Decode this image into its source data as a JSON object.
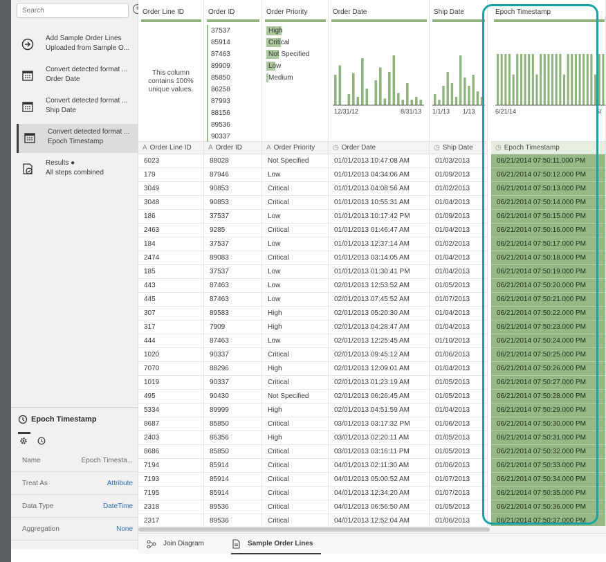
{
  "steps_pane": {
    "search_placeholder": "Search",
    "steps": [
      {
        "line1": "Add Sample Order Lines",
        "line2": "Uploaded from Sample O...",
        "icon": "arrow-circle-icon"
      },
      {
        "line1": "Convert detected format ...",
        "line2": "Order Date",
        "icon": "calendar-icon"
      },
      {
        "line1": "Convert detected format ...",
        "line2": "Ship Date",
        "icon": "calendar-icon"
      },
      {
        "line1": "Convert detected format ...",
        "line2": "Epoch Timestamp",
        "icon": "calendar-icon"
      },
      {
        "line1": "Results ●",
        "line2": "All steps combined",
        "icon": "results-icon"
      }
    ]
  },
  "properties": {
    "title": "Epoch Timestamp",
    "rows": [
      {
        "key": "Name",
        "value": "Epoch Timesta..."
      },
      {
        "key": "Treat As",
        "value": "Attribute"
      },
      {
        "key": "Data Type",
        "value": "DateTime"
      },
      {
        "key": "Aggregation",
        "value": "None"
      }
    ]
  },
  "columns": {
    "order_line_id": {
      "title": "Order Line ID",
      "subhead": "Order Line ID",
      "type_glyph": "A",
      "note": "This column contains 100% unique values."
    },
    "order_id": {
      "title": "Order ID",
      "subhead": "Order ID",
      "type_glyph": "A",
      "values_preview": [
        "37537",
        "85914",
        "87463",
        "89909",
        "85850",
        "86258",
        "87993",
        "88156",
        "89536",
        "90337"
      ]
    },
    "order_priority": {
      "title": "Order Priority",
      "subhead": "Order Priority",
      "type_glyph": "A",
      "values_preview": [
        "High",
        "Critical",
        "Not Specified",
        "Low",
        "Medium"
      ],
      "frequencies": [
        0.28,
        0.26,
        0.22,
        0.16,
        0.04
      ]
    },
    "order_date": {
      "title": "Order Date",
      "subhead": "Order Date",
      "type_glyph": "◷",
      "axis": [
        "12/31/12",
        "8/31/13"
      ],
      "histogram": [
        0.55,
        0.72,
        0,
        0.2,
        0.58,
        0.15,
        0.85,
        0.3,
        0,
        0.45,
        0.68,
        0.12,
        0.6,
        0.9,
        0.22,
        0.1,
        0.4,
        0.1,
        0.15,
        0.1
      ]
    },
    "ship_date": {
      "title": "Ship Date",
      "subhead": "Ship Date",
      "type_glyph": "◷",
      "axis": [
        "1/1/13",
        "1/13"
      ],
      "histogram": [
        0.2,
        0.1,
        0.35,
        0.6,
        0.4,
        0.15,
        0.9,
        0.5,
        0.35,
        0.55,
        0.25,
        0.15
      ]
    },
    "epoch_timestamp": {
      "title": "Epoch Timestamp",
      "subhead": "Epoch Timestamp",
      "type_glyph": "◷",
      "axis": [
        "6/21/14",
        "6/"
      ],
      "histogram": [
        1,
        1,
        1,
        1,
        0.6,
        1,
        1,
        1,
        1,
        1,
        0.6,
        1,
        1,
        1,
        1,
        1,
        1,
        0.6,
        1,
        1,
        1,
        1,
        1,
        1,
        1,
        0.6,
        1,
        1
      ]
    }
  },
  "rows": [
    [
      "6023",
      "88028",
      "Not Specified",
      "01/01/2013 10:47:08 AM",
      "01/03/2013",
      "06/21/2014 07:50:11.000 PM"
    ],
    [
      "179",
      "87946",
      "Low",
      "01/01/2013 04:34:06 AM",
      "01/09/2013",
      "06/21/2014 07:50:12.000 PM"
    ],
    [
      "3049",
      "90853",
      "Critical",
      "01/01/2013 04:08:56 AM",
      "01/02/2013",
      "06/21/2014 07:50:13.000 PM"
    ],
    [
      "3048",
      "90853",
      "Critical",
      "01/01/2013 10:55:31 AM",
      "01/04/2013",
      "06/21/2014 07:50:14.000 PM"
    ],
    [
      "186",
      "37537",
      "Low",
      "01/01/2013 10:17:42 PM",
      "01/09/2013",
      "06/21/2014 07:50:15.000 PM"
    ],
    [
      "2463",
      "9285",
      "Critical",
      "01/01/2013 01:46:47 AM",
      "01/04/2013",
      "06/21/2014 07:50:16.000 PM"
    ],
    [
      "184",
      "37537",
      "Low",
      "01/01/2013 12:37:14 AM",
      "01/02/2013",
      "06/21/2014 07:50:17.000 PM"
    ],
    [
      "2474",
      "89083",
      "Critical",
      "01/01/2013 03:14:05 AM",
      "01/04/2013",
      "06/21/2014 07:50:18.000 PM"
    ],
    [
      "185",
      "37537",
      "Low",
      "01/01/2013 01:30:41 PM",
      "01/04/2013",
      "06/21/2014 07:50:19.000 PM"
    ],
    [
      "443",
      "87463",
      "Low",
      "02/01/2013 12:53:52 AM",
      "01/05/2013",
      "06/21/2014 07:50:20.000 PM"
    ],
    [
      "445",
      "87463",
      "Low",
      "02/01/2013 07:45:52 AM",
      "01/07/2013",
      "06/21/2014 07:50:21.000 PM"
    ],
    [
      "307",
      "89583",
      "High",
      "02/01/2013 05:20:30 AM",
      "01/04/2013",
      "06/21/2014 07:50:22.000 PM"
    ],
    [
      "317",
      "7909",
      "High",
      "02/01/2013 04:28:47 AM",
      "01/04/2013",
      "06/21/2014 07:50:23.000 PM"
    ],
    [
      "444",
      "87463",
      "Low",
      "02/01/2013 12:25:45 AM",
      "01/10/2013",
      "06/21/2014 07:50:24.000 PM"
    ],
    [
      "1020",
      "90337",
      "Critical",
      "02/01/2013 09:45:12 AM",
      "01/06/2013",
      "06/21/2014 07:50:25.000 PM"
    ],
    [
      "7070",
      "88296",
      "High",
      "02/01/2013 12:09:01 AM",
      "01/04/2013",
      "06/21/2014 07:50:26.000 PM"
    ],
    [
      "1019",
      "90337",
      "Critical",
      "02/01/2013 01:23:19 AM",
      "01/05/2013",
      "06/21/2014 07:50:27.000 PM"
    ],
    [
      "495",
      "90430",
      "Not Specified",
      "02/01/2013 06:26:45 AM",
      "01/05/2013",
      "06/21/2014 07:50:28.000 PM"
    ],
    [
      "5334",
      "89999",
      "High",
      "02/01/2013 04:51:59 AM",
      "01/04/2013",
      "06/21/2014 07:50:29.000 PM"
    ],
    [
      "8687",
      "85850",
      "Critical",
      "03/01/2013 03:17:32 PM",
      "01/06/2013",
      "06/21/2014 07:50:30.000 PM"
    ],
    [
      "2403",
      "86356",
      "High",
      "03/01/2013 02:20:11 AM",
      "01/05/2013",
      "06/21/2014 07:50:31.000 PM"
    ],
    [
      "8686",
      "85850",
      "Critical",
      "03/01/2013 03:16:11 PM",
      "01/05/2013",
      "06/21/2014 07:50:32.000 PM"
    ],
    [
      "7194",
      "85914",
      "Critical",
      "04/01/2013 02:11:30 AM",
      "01/06/2013",
      "06/21/2014 07:50:33.000 PM"
    ],
    [
      "7193",
      "85914",
      "Critical",
      "04/01/2013 05:00:52 AM",
      "01/07/2013",
      "06/21/2014 07:50:34.000 PM"
    ],
    [
      "7195",
      "85914",
      "Critical",
      "04/01/2013 12:34:20 AM",
      "01/07/2013",
      "06/21/2014 07:50:35.000 PM"
    ],
    [
      "2318",
      "89536",
      "Critical",
      "04/01/2013 06:56:50 AM",
      "01/05/2013",
      "06/21/2014 07:50:36.000 PM"
    ],
    [
      "2317",
      "89536",
      "Critical",
      "04/01/2013 12:52:04 AM",
      "01/06/2013",
      "06/21/2014 07:50:37.000 PM"
    ]
  ],
  "bottom_tabs": {
    "join_diagram": "Join Diagram",
    "sample_order_lines": "Sample Order Lines"
  },
  "colors": {
    "accent_highlight": "#18a3a8",
    "selected_column_fill": "#96b886",
    "histogram_bar": "#8fb37c"
  }
}
